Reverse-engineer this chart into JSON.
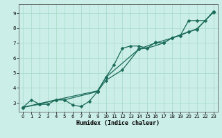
{
  "title": "",
  "xlabel": "Humidex (Indice chaleur)",
  "bg_color": "#cceee8",
  "grid_color": "#aaddcc",
  "line_color": "#1a6b5a",
  "xlim": [
    -0.5,
    23.5
  ],
  "ylim": [
    2.4,
    9.6
  ],
  "xticks": [
    0,
    1,
    2,
    3,
    4,
    5,
    6,
    7,
    8,
    9,
    10,
    11,
    12,
    13,
    14,
    15,
    16,
    17,
    18,
    19,
    20,
    21,
    22,
    23
  ],
  "yticks": [
    3,
    4,
    5,
    6,
    7,
    8,
    9
  ],
  "series1_x": [
    0,
    1,
    2,
    3,
    4,
    5,
    6,
    7,
    8,
    9,
    10,
    11,
    12,
    13,
    14,
    15,
    16,
    17,
    18,
    19,
    20,
    21,
    22,
    23
  ],
  "series1_y": [
    2.7,
    3.2,
    2.9,
    2.9,
    3.2,
    3.2,
    2.85,
    2.75,
    3.1,
    3.75,
    4.7,
    5.55,
    6.65,
    6.8,
    6.8,
    6.65,
    7.05,
    7.0,
    7.35,
    7.5,
    8.5,
    8.5,
    8.5,
    9.1
  ],
  "series2_x": [
    0,
    2,
    4,
    5,
    9,
    10,
    12,
    14,
    15,
    17,
    18,
    20,
    21,
    23
  ],
  "series2_y": [
    2.7,
    2.9,
    3.2,
    3.2,
    3.75,
    4.5,
    5.2,
    6.6,
    6.65,
    7.0,
    7.35,
    7.75,
    7.9,
    9.1
  ],
  "series3_x": [
    0,
    4,
    9,
    10,
    14,
    16,
    19,
    20,
    21,
    23
  ],
  "series3_y": [
    2.7,
    3.2,
    3.8,
    4.7,
    6.6,
    7.0,
    7.5,
    7.75,
    7.95,
    9.05
  ],
  "marker": "D",
  "markersize": 2.5,
  "linewidth": 0.9
}
